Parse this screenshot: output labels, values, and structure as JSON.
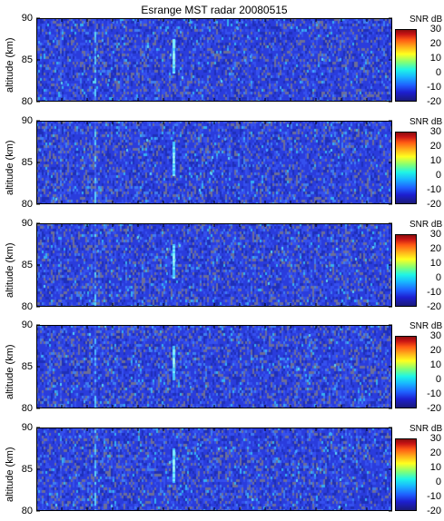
{
  "title": "Esrange MST radar 20080515",
  "colors": {
    "background_blue": "#2a3fd6",
    "gray_noise": "#6b6b8a",
    "echo_cyan": "#6fe0ff",
    "frame": "#000000"
  },
  "colorbar": {
    "label": "SNR dB",
    "ticks": [
      "30",
      "20",
      "10",
      "0",
      "-10",
      "-20"
    ],
    "range": [
      -20,
      30
    ]
  },
  "chart_data": [
    {
      "type": "heatmap",
      "ylabel": "altitude (km)",
      "yticks": [
        "90",
        "85",
        "80"
      ],
      "ylim": [
        80,
        90
      ],
      "colorbar_label": "SNR dB",
      "clim": [
        -20,
        30
      ],
      "echo_features": [
        {
          "kind": "vertical echo",
          "altitude_range": [
            83.5,
            87.5
          ],
          "snr_db": 10
        },
        {
          "kind": "faint echo column",
          "altitude_range": [
            80,
            90
          ],
          "snr_db": 0
        }
      ]
    },
    {
      "type": "heatmap",
      "ylabel": "altitude (km)",
      "yticks": [
        "90",
        "85",
        "80"
      ],
      "ylim": [
        80,
        90
      ],
      "colorbar_label": "SNR dB",
      "clim": [
        -20,
        30
      ],
      "echo_features": [
        {
          "kind": "vertical echo",
          "altitude_range": [
            83.5,
            87.5
          ],
          "snr_db": 10
        },
        {
          "kind": "faint echo column",
          "altitude_range": [
            80,
            90
          ],
          "snr_db": 0
        }
      ]
    },
    {
      "type": "heatmap",
      "ylabel": "altitude (km)",
      "yticks": [
        "90",
        "85",
        "80"
      ],
      "ylim": [
        80,
        90
      ],
      "colorbar_label": "SNR dB",
      "clim": [
        -20,
        30
      ],
      "echo_features": [
        {
          "kind": "vertical echo",
          "altitude_range": [
            83.5,
            87.5
          ],
          "snr_db": 10
        },
        {
          "kind": "faint echo column",
          "altitude_range": [
            80,
            90
          ],
          "snr_db": 0
        }
      ]
    },
    {
      "type": "heatmap",
      "ylabel": "altitude (km)",
      "yticks": [
        "90",
        "85",
        "80"
      ],
      "ylim": [
        80,
        90
      ],
      "colorbar_label": "SNR dB",
      "clim": [
        -20,
        30
      ],
      "echo_features": [
        {
          "kind": "vertical echo",
          "altitude_range": [
            83.5,
            87.5
          ],
          "snr_db": 10
        },
        {
          "kind": "faint echo column",
          "altitude_range": [
            80,
            90
          ],
          "snr_db": 0
        }
      ]
    },
    {
      "type": "heatmap",
      "ylabel": "altitude (km)",
      "yticks": [
        "90",
        "85",
        "80"
      ],
      "ylim": [
        80,
        90
      ],
      "colorbar_label": "SNR dB",
      "clim": [
        -20,
        30
      ],
      "echo_features": [
        {
          "kind": "vertical echo",
          "altitude_range": [
            83.5,
            87.5
          ],
          "snr_db": 10
        },
        {
          "kind": "faint echo column",
          "altitude_range": [
            80,
            90
          ],
          "snr_db": 0
        }
      ]
    }
  ]
}
